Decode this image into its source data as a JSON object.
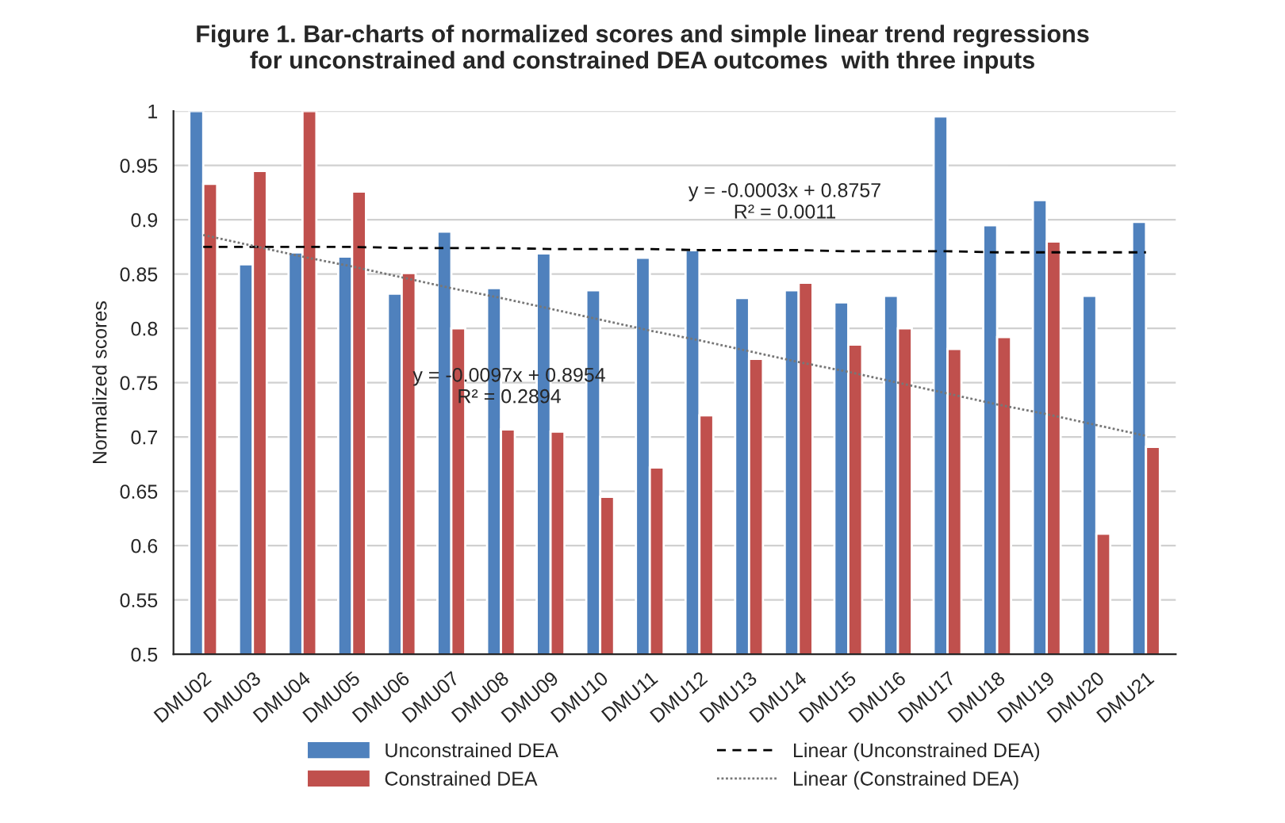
{
  "chart_data": {
    "type": "bar",
    "title": "Figure 1. Bar-charts of normalized scores and simple linear trend regressions\nfor unconstrained and constrained DEA outcomes  with three inputs",
    "ylabel": "Normalized scores",
    "categories": [
      "DMU02",
      "DMU03",
      "DMU04",
      "DMU05",
      "DMU06",
      "DMU07",
      "DMU08",
      "DMU09",
      "DMU10",
      "DMU11",
      "DMU12",
      "DMU13",
      "DMU14",
      "DMU15",
      "DMU16",
      "DMU17",
      "DMU18",
      "DMU19",
      "DMU20",
      "DMU21"
    ],
    "series": [
      {
        "name": "Unconstrained DEA",
        "color": "#4f81bd",
        "values": [
          1.0,
          0.859,
          0.87,
          0.866,
          0.832,
          0.889,
          0.837,
          0.869,
          0.835,
          0.865,
          0.872,
          0.828,
          0.835,
          0.824,
          0.83,
          0.995,
          0.895,
          0.918,
          0.83,
          0.898
        ]
      },
      {
        "name": "Constrained DEA",
        "color": "#c0504d",
        "values": [
          0.933,
          0.945,
          1.0,
          0.926,
          0.851,
          0.8,
          0.707,
          0.705,
          0.645,
          0.672,
          0.72,
          0.772,
          0.842,
          0.785,
          0.8,
          0.781,
          0.792,
          0.88,
          0.611,
          0.691
        ]
      },
      {
        "name": "Linear (Unconstrained DEA)",
        "type": "line",
        "color": "#000000",
        "line_style": "dashed",
        "values": [
          0.875,
          0.875,
          0.875,
          0.875,
          0.874,
          0.874,
          0.874,
          0.873,
          0.873,
          0.873,
          0.872,
          0.872,
          0.872,
          0.871,
          0.871,
          0.871,
          0.87,
          0.87,
          0.87,
          0.87
        ]
      },
      {
        "name": "Linear (Constrained DEA)",
        "type": "line",
        "color": "#777777",
        "line_style": "dotted",
        "values": [
          0.886,
          0.876,
          0.866,
          0.857,
          0.847,
          0.837,
          0.828,
          0.818,
          0.808,
          0.798,
          0.789,
          0.779,
          0.769,
          0.76,
          0.75,
          0.74,
          0.73,
          0.721,
          0.711,
          0.701
        ]
      }
    ],
    "annotations": [
      "y = -0.0003x + 0.8757\nR² = 0.0011",
      "y = -0.0097x + 0.8954\nR² = 0.2894"
    ],
    "ylim": [
      0.5,
      1
    ],
    "yticks": [
      0.5,
      0.55,
      0.6,
      0.65,
      0.7,
      0.75,
      0.8,
      0.85,
      0.9,
      0.95,
      1
    ],
    "grid": "y",
    "legend": "bottom"
  }
}
